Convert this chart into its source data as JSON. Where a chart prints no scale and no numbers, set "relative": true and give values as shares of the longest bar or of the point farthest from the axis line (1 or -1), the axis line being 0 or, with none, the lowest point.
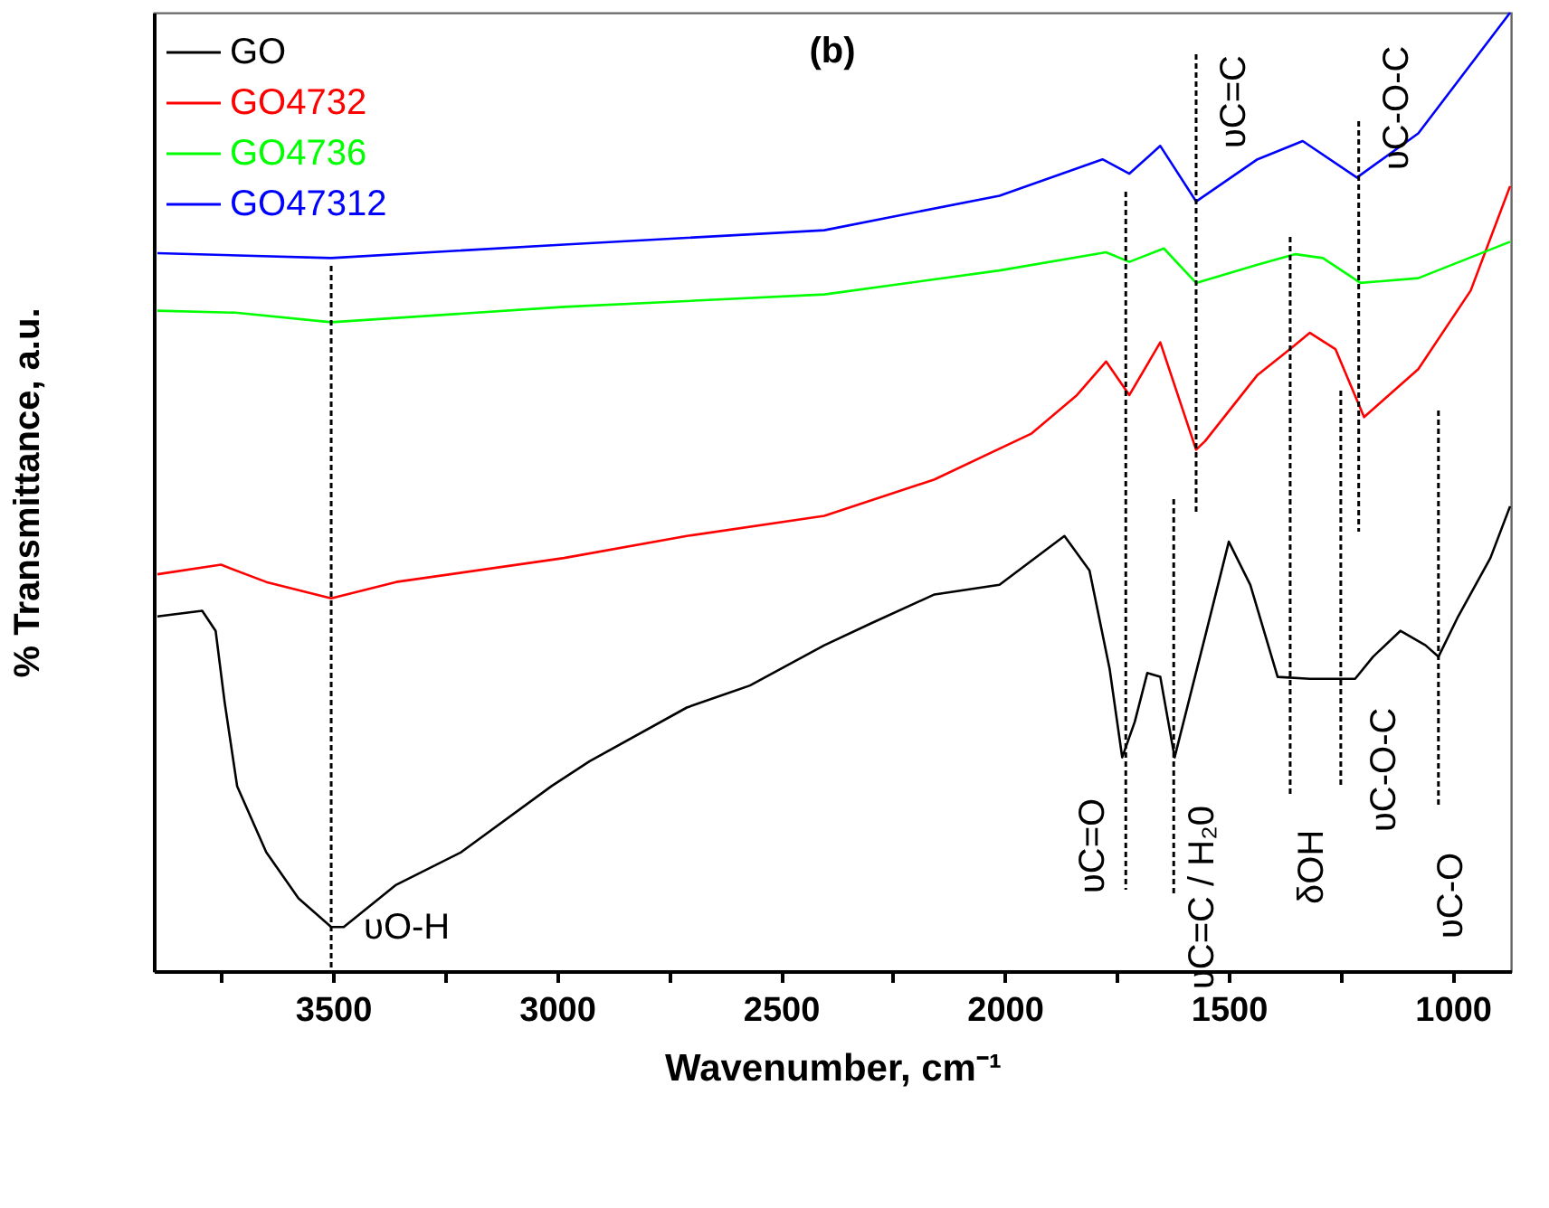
{
  "chart_data": {
    "type": "line",
    "title": "(b)",
    "xlabel": "Wavenumber, cm⁻¹",
    "ylabel": "% Transmittance, a.u.",
    "relative": true,
    "grid": false,
    "legend": "top left",
    "xlim": [
      3900,
      870
    ],
    "xticks": [
      {
        "value": 3750,
        "label": null
      },
      3500,
      {
        "value": 3250,
        "label": null
      },
      3000,
      {
        "value": 2750,
        "label": null
      },
      2500,
      {
        "value": 2250,
        "label": null
      },
      2000,
      {
        "value": 1750,
        "label": null
      },
      1500,
      {
        "value": 1250,
        "label": null
      },
      1000
    ],
    "series": [
      {
        "name": "GO",
        "color": "#000000",
        "x": [
          3892,
          3792,
          3762,
          3742,
          3714,
          3649,
          3577,
          3504,
          3476,
          3359,
          3214,
          3012,
          2927,
          2710,
          2569,
          2403,
          2298,
          2157,
          2012,
          1867,
          1811,
          1766,
          1738,
          1710,
          1682,
          1653,
          1621,
          1553,
          1500,
          1452,
          1391,
          1319,
          1218,
          1178,
          1117,
          1061,
          1032,
          988,
          916,
          872
        ],
        "values": [
          0.37,
          0.376,
          0.355,
          0.281,
          0.193,
          0.124,
          0.076,
          0.046,
          0.046,
          0.09,
          0.124,
          0.193,
          0.219,
          0.275,
          0.298,
          0.34,
          0.363,
          0.393,
          0.403,
          0.454,
          0.418,
          0.315,
          0.223,
          0.26,
          0.311,
          0.307,
          0.223,
          0.349,
          0.448,
          0.403,
          0.307,
          0.305,
          0.305,
          0.328,
          0.355,
          0.34,
          0.328,
          0.37,
          0.431,
          0.485
        ]
      },
      {
        "name": "GO4732",
        "color": "#ff0000",
        "x": [
          3892,
          3750,
          3649,
          3504,
          3359,
          2984,
          2710,
          2403,
          2157,
          1940,
          1839,
          1774,
          1722,
          1653,
          1573,
          1553,
          1436,
          1363,
          1319,
          1262,
          1198,
          1077,
          960,
          872
        ],
        "values": [
          0.414,
          0.424,
          0.406,
          0.389,
          0.406,
          0.431,
          0.454,
          0.475,
          0.513,
          0.561,
          0.601,
          0.636,
          0.601,
          0.656,
          0.544,
          0.553,
          0.622,
          0.649,
          0.666,
          0.649,
          0.578,
          0.628,
          0.71,
          0.819
        ]
      },
      {
        "name": "GO4736",
        "color": "#00ff00",
        "x": [
          3892,
          3718,
          3504,
          2984,
          2403,
          2012,
          1774,
          1722,
          1645,
          1573,
          1436,
          1351,
          1290,
          1206,
          1077,
          872
        ],
        "values": [
          0.689,
          0.687,
          0.677,
          0.693,
          0.706,
          0.731,
          0.75,
          0.74,
          0.754,
          0.718,
          0.737,
          0.748,
          0.744,
          0.718,
          0.723,
          0.761
        ]
      },
      {
        "name": "GO47312",
        "color": "#0000ff",
        "x": [
          3892,
          3504,
          2984,
          2403,
          2012,
          1782,
          1722,
          1653,
          1573,
          1436,
          1335,
          1214,
          1077,
          872
        ],
        "values": [
          0.749,
          0.744,
          0.758,
          0.773,
          0.809,
          0.847,
          0.832,
          0.861,
          0.803,
          0.847,
          0.866,
          0.828,
          0.874,
          1.0
        ]
      }
    ],
    "ref_lines": [
      {
        "axis": "x",
        "value": 3504,
        "label": "υO-H",
        "color": "#000000",
        "line_style": "dotted"
      },
      {
        "axis": "x",
        "value": 1730,
        "label": "υC=O",
        "color": "#000000",
        "line_style": "dotted"
      },
      {
        "axis": "x",
        "value": 1623,
        "label": "υC=C / H₂0",
        "color": "#000000",
        "line_style": "dotted"
      },
      {
        "axis": "x",
        "value": 1573,
        "label": "υC=C",
        "color": "#000000",
        "line_style": "dotted"
      },
      {
        "axis": "x",
        "value": 1363,
        "label": "δOH",
        "color": "#000000",
        "line_style": "dotted"
      },
      {
        "axis": "x",
        "value": 1250,
        "label": "υC-O-C",
        "color": "#000000",
        "line_style": "dotted"
      },
      {
        "axis": "x",
        "value": 1210,
        "label": "υC-O-C",
        "color": "#000000",
        "line_style": "dotted"
      },
      {
        "axis": "x",
        "value": 1032,
        "label": "υC-O",
        "color": "#000000",
        "line_style": "dotted"
      }
    ]
  }
}
